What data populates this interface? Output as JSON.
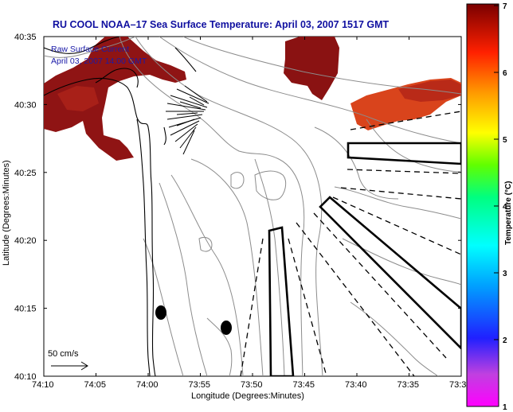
{
  "title": "RU COOL  NOAA–17  Sea Surface Temperature:  April 03, 2007 1517 GMT",
  "legend": {
    "line1": "Raw Surface Current",
    "line2": "April 03, 2007 14:00 GMT",
    "scale_label": "50 cm/s"
  },
  "x_axis": {
    "label": "Longitude (Degrees:Minutes)",
    "ticks": [
      "74:10",
      "74:05",
      "74:00",
      "73:55",
      "73:50",
      "73:45",
      "73:40",
      "73:35",
      "73:3"
    ]
  },
  "y_axis": {
    "label": "Latitude (Degrees:Minutes)",
    "ticks": [
      "40:35",
      "40:30",
      "40:25",
      "40:20",
      "40:15",
      "40:10"
    ]
  },
  "colorbar": {
    "label": "Temperature (°C)",
    "ticks": [
      "7",
      "6",
      "5",
      "4",
      "3",
      "2",
      "1"
    ],
    "range": [
      1,
      7
    ]
  },
  "colors": {
    "title": "#1010a0",
    "land_contour": "#000000",
    "bathymetry": "#8c8c8c",
    "sst_warm": "#8b1010",
    "sst_orange": "#e85020"
  }
}
